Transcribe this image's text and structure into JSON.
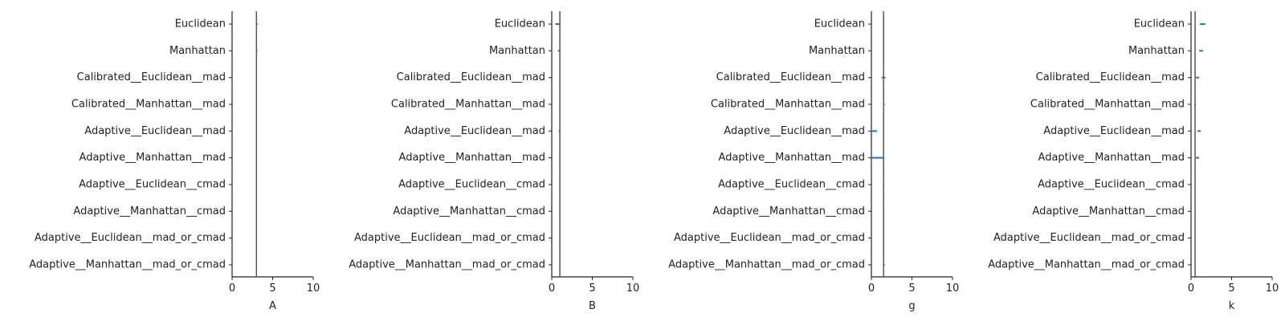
{
  "chart_data": {
    "type": "errorbar",
    "categories": [
      "Euclidean",
      "Manhattan",
      "Calibrated__Euclidean__mad",
      "Calibrated__Manhattan__mad",
      "Adaptive__Euclidean__mad",
      "Adaptive__Manhattan__mad",
      "Adaptive__Euclidean__cmad",
      "Adaptive__Manhattan__cmad",
      "Adaptive__Euclidean__mad_or_cmad",
      "Adaptive__Manhattan__mad_or_cmad"
    ],
    "xlim": [
      0,
      10
    ],
    "xticks": [
      0,
      5,
      10
    ],
    "grid": false,
    "series_color": "#1f77b4",
    "reference_color": "#555555",
    "panels": [
      {
        "xlabel": "A",
        "reference": 3.0,
        "estimates": [
          {
            "low": 2.95,
            "high": 3.15
          },
          {
            "low": 2.95,
            "high": 3.12
          },
          null,
          null,
          null,
          null,
          null,
          null,
          null,
          null
        ]
      },
      {
        "xlabel": "B",
        "reference": 1.0,
        "estimates": [
          {
            "low": 0.45,
            "high": 1.0
          },
          {
            "low": 0.75,
            "high": 1.0
          },
          null,
          null,
          {
            "low": 0.85,
            "high": 1.0
          },
          null,
          null,
          null,
          null,
          null
        ]
      },
      {
        "xlabel": "g",
        "reference": 1.5,
        "estimates": [
          null,
          null,
          {
            "low": 1.25,
            "high": 1.75
          },
          {
            "low": 1.45,
            "high": 1.65
          },
          {
            "low": 0.0,
            "high": 0.7
          },
          {
            "low": 0.0,
            "high": 1.6
          },
          {
            "low": 1.5,
            "high": 1.6
          },
          {
            "low": 1.5,
            "high": 1.6
          },
          null,
          {
            "low": 1.45,
            "high": 1.65
          }
        ]
      },
      {
        "xlabel": "k",
        "reference": 0.5,
        "estimates": [
          {
            "low": 1.1,
            "high": 1.75
          },
          {
            "low": 1.0,
            "high": 1.5
          },
          {
            "low": 0.6,
            "high": 1.0
          },
          {
            "low": 0.4,
            "high": 0.6
          },
          {
            "low": 0.8,
            "high": 1.2
          },
          {
            "low": 0.6,
            "high": 1.0
          },
          null,
          null,
          null,
          null
        ]
      }
    ]
  }
}
